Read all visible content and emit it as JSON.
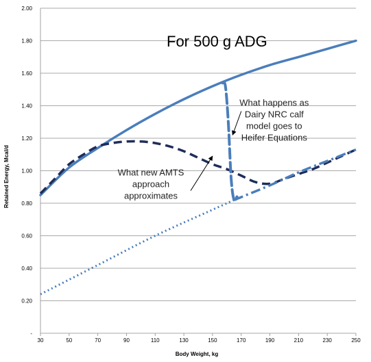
{
  "chart_data": {
    "type": "line",
    "title": "For 500 g ADG",
    "xlabel": "Body Weight, kg",
    "ylabel": "Retained Energy, Mcal/d",
    "xlim": [
      30,
      250
    ],
    "ylim": [
      0,
      2.0
    ],
    "x_ticks": [
      30,
      50,
      70,
      90,
      110,
      130,
      150,
      170,
      190,
      210,
      230,
      250
    ],
    "y_ticks": [
      {
        "value": 0,
        "label": "-"
      },
      {
        "value": 0.2,
        "label": "0.20"
      },
      {
        "value": 0.4,
        "label": "0.40"
      },
      {
        "value": 0.6,
        "label": "0.60"
      },
      {
        "value": 0.8,
        "label": "0.80"
      },
      {
        "value": 1.0,
        "label": "1.00"
      },
      {
        "value": 1.2,
        "label": "1.20"
      },
      {
        "value": 1.4,
        "label": "1.40"
      },
      {
        "value": 1.6,
        "label": "1.60"
      },
      {
        "value": 1.8,
        "label": "1.80"
      },
      {
        "value": 2.0,
        "label": "2.00"
      }
    ],
    "grid": "horizontal",
    "series": [
      {
        "style": "solid",
        "color": "#4a7ebb",
        "x": [
          30,
          50,
          70,
          90,
          110,
          130,
          150,
          170,
          190,
          210,
          230,
          250
        ],
        "y": [
          0.85,
          1.02,
          1.14,
          1.25,
          1.35,
          1.44,
          1.52,
          1.59,
          1.65,
          1.7,
          1.75,
          1.8
        ]
      },
      {
        "style": "dash",
        "color": "#1f2d5a",
        "x": [
          30,
          40,
          50,
          60,
          70,
          80,
          90,
          100,
          110,
          120,
          130,
          140,
          150,
          160,
          170,
          180,
          190,
          200,
          210,
          220,
          230,
          240,
          250
        ],
        "y": [
          0.86,
          0.95,
          1.04,
          1.1,
          1.15,
          1.17,
          1.18,
          1.18,
          1.17,
          1.15,
          1.12,
          1.08,
          1.04,
          1.01,
          0.97,
          0.93,
          0.92,
          0.95,
          0.98,
          1.01,
          1.05,
          1.09,
          1.13
        ]
      },
      {
        "style": "dot",
        "color": "#4a7ebb",
        "x": [
          30,
          70,
          110,
          150,
          165
        ],
        "y": [
          0.24,
          0.42,
          0.6,
          0.76,
          0.82
        ]
      },
      {
        "style": "dashdot",
        "color": "#4a7ebb",
        "x": [
          165,
          190,
          210,
          230,
          250
        ],
        "y": [
          0.82,
          0.91,
          0.99,
          1.06,
          1.13
        ]
      },
      {
        "style": "longdash",
        "color": "#4a7ebb",
        "x": [
          157,
          159,
          161,
          163,
          165,
          167
        ],
        "y": [
          1.54,
          1.52,
          1.3,
          0.95,
          0.82,
          0.84
        ]
      }
    ],
    "annotations": [
      {
        "lines": [
          "What happens as",
          "Dairy NRC calf",
          "model goes to",
          "Heifer Equations"
        ],
        "value_x": 193,
        "value_y": 1.4,
        "arrow_to": [
          164,
          1.22
        ]
      },
      {
        "lines": [
          "What new AMTS",
          "approach",
          "approximates"
        ],
        "value_x": 107,
        "value_y": 0.97,
        "arrow_to": [
          150,
          1.09
        ]
      }
    ]
  }
}
